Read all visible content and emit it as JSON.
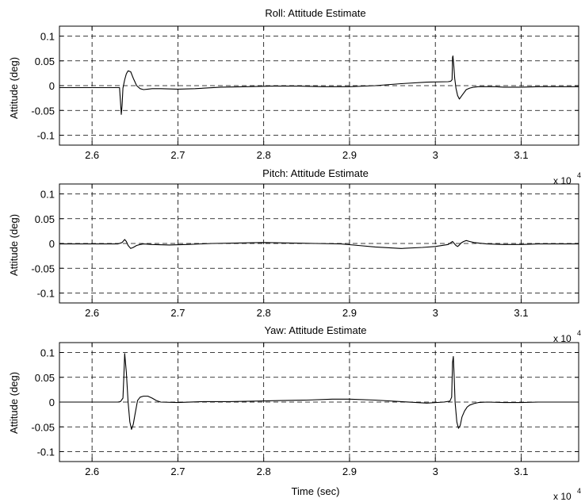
{
  "figure": {
    "x_exponent_base": "x 10",
    "x_exponent_power": "4"
  },
  "chart_data": [
    {
      "type": "line",
      "title": "Roll:  Attitude Estimate",
      "xlabel": "",
      "ylabel": "Attitude (deg)",
      "xlim": [
        25620,
        31670
      ],
      "ylim": [
        -0.12,
        0.12
      ],
      "x_ticks": [
        26000,
        27000,
        28000,
        29000,
        30000,
        31000
      ],
      "x_tick_labels": [
        "2.6",
        "2.7",
        "2.8",
        "2.9",
        "3",
        "3.1"
      ],
      "y_ticks": [
        0.1,
        0.05,
        0,
        -0.05,
        -0.1
      ],
      "y_tick_labels": [
        "0.1",
        "0.05",
        "0",
        "-0.05",
        "-0.1"
      ],
      "grid": true,
      "series": [
        {
          "color": "#000000",
          "x": [
            25620,
            26320,
            26330,
            26340,
            26350,
            26360,
            26380,
            26400,
            26420,
            26450,
            26480,
            26520,
            26560,
            26600,
            26650,
            26700,
            26800,
            27000,
            27200,
            27500,
            27800,
            28100,
            28400,
            28700,
            29000,
            29300,
            29600,
            29900,
            30150,
            30180,
            30195,
            30200,
            30205,
            30215,
            30225,
            30240,
            30260,
            30280,
            30300,
            30330,
            30360,
            30400,
            30450,
            30500,
            30600,
            30700,
            30800,
            31000,
            31200,
            31400,
            31670
          ],
          "y": [
            -0.004,
            -0.004,
            -0.03,
            -0.058,
            -0.04,
            -0.005,
            0.012,
            0.024,
            0.03,
            0.028,
            0.015,
            0.0,
            -0.006,
            -0.008,
            -0.007,
            -0.006,
            -0.006,
            -0.007,
            -0.006,
            -0.003,
            -0.002,
            -0.001,
            -0.001,
            -0.002,
            -0.002,
            0.0,
            0.004,
            0.007,
            0.008,
            0.009,
            0.012,
            0.057,
            0.06,
            0.04,
            0.015,
            -0.005,
            -0.02,
            -0.027,
            -0.022,
            -0.015,
            -0.008,
            -0.005,
            -0.003,
            -0.002,
            -0.002,
            -0.002,
            -0.003,
            -0.003,
            -0.002,
            -0.002,
            -0.002
          ]
        }
      ]
    },
    {
      "type": "line",
      "title": "Pitch:  Attitude Estimate",
      "xlabel": "",
      "ylabel": "Attitude (deg)",
      "xlim": [
        25620,
        31670
      ],
      "ylim": [
        -0.12,
        0.12
      ],
      "x_ticks": [
        26000,
        27000,
        28000,
        29000,
        30000,
        31000
      ],
      "x_tick_labels": [
        "2.6",
        "2.7",
        "2.8",
        "2.9",
        "3",
        "3.1"
      ],
      "y_ticks": [
        0.1,
        0.05,
        0,
        -0.05,
        -0.1
      ],
      "y_tick_labels": [
        "0.1",
        "0.05",
        "0",
        "-0.05",
        "-0.1"
      ],
      "grid": true,
      "series": [
        {
          "color": "#000000",
          "x": [
            25620,
            26300,
            26350,
            26380,
            26400,
            26420,
            26450,
            26480,
            26520,
            26560,
            26600,
            26700,
            26900,
            27100,
            27400,
            27700,
            28000,
            28300,
            28600,
            28900,
            29100,
            29300,
            29600,
            29850,
            30000,
            30150,
            30200,
            30220,
            30240,
            30260,
            30280,
            30300,
            30330,
            30360,
            30400,
            30450,
            30500,
            30600,
            30800,
            31000,
            31200,
            31670
          ],
          "y": [
            -0.001,
            -0.001,
            0.002,
            0.008,
            0.004,
            -0.004,
            -0.01,
            -0.008,
            -0.004,
            -0.002,
            -0.001,
            -0.002,
            -0.003,
            -0.002,
            0.0,
            0.001,
            0.002,
            0.001,
            0.0,
            -0.001,
            -0.004,
            -0.007,
            -0.01,
            -0.008,
            -0.006,
            -0.002,
            0.004,
            0.0,
            -0.004,
            -0.006,
            -0.003,
            0.001,
            0.004,
            0.006,
            0.004,
            0.002,
            0.001,
            -0.001,
            -0.002,
            -0.002,
            -0.001,
            -0.001
          ]
        }
      ]
    },
    {
      "type": "line",
      "title": "Yaw:  Attitude Estimate",
      "xlabel": "Time (sec)",
      "ylabel": "Attitude (deg)",
      "xlim": [
        25620,
        31670
      ],
      "ylim": [
        -0.12,
        0.12
      ],
      "x_ticks": [
        26000,
        27000,
        28000,
        29000,
        30000,
        31000
      ],
      "x_tick_labels": [
        "2.6",
        "2.7",
        "2.8",
        "2.9",
        "3",
        "3.1"
      ],
      "y_ticks": [
        0.1,
        0.05,
        0,
        -0.05,
        -0.1
      ],
      "y_tick_labels": [
        "0.1",
        "0.05",
        "0",
        "-0.05",
        "-0.1"
      ],
      "grid": true,
      "series": [
        {
          "color": "#000000",
          "x": [
            25620,
            26300,
            26330,
            26360,
            26370,
            26380,
            26400,
            26420,
            26440,
            26460,
            26480,
            26500,
            26530,
            26560,
            26600,
            26650,
            26700,
            26750,
            26800,
            27000,
            27300,
            27600,
            27900,
            28200,
            28500,
            28800,
            29000,
            29300,
            29600,
            29900,
            30100,
            30170,
            30190,
            30200,
            30210,
            30220,
            30230,
            30250,
            30270,
            30290,
            30310,
            30340,
            30370,
            30400,
            30450,
            30500,
            30600,
            30800,
            31000,
            31200,
            31670
          ],
          "y": [
            0.0,
            0.0,
            0.001,
            0.008,
            0.05,
            0.098,
            0.06,
            0.0,
            -0.04,
            -0.055,
            -0.045,
            -0.025,
            0.003,
            0.01,
            0.012,
            0.012,
            0.008,
            0.003,
            0.0,
            -0.001,
            0.001,
            0.001,
            0.002,
            0.003,
            0.004,
            0.006,
            0.006,
            0.004,
            0.001,
            -0.002,
            0.0,
            0.002,
            0.01,
            0.08,
            0.092,
            0.05,
            0.0,
            -0.04,
            -0.053,
            -0.047,
            -0.03,
            -0.018,
            -0.01,
            -0.006,
            -0.003,
            -0.001,
            0.0,
            -0.001,
            -0.001,
            0.0,
            0.0
          ]
        }
      ]
    }
  ]
}
